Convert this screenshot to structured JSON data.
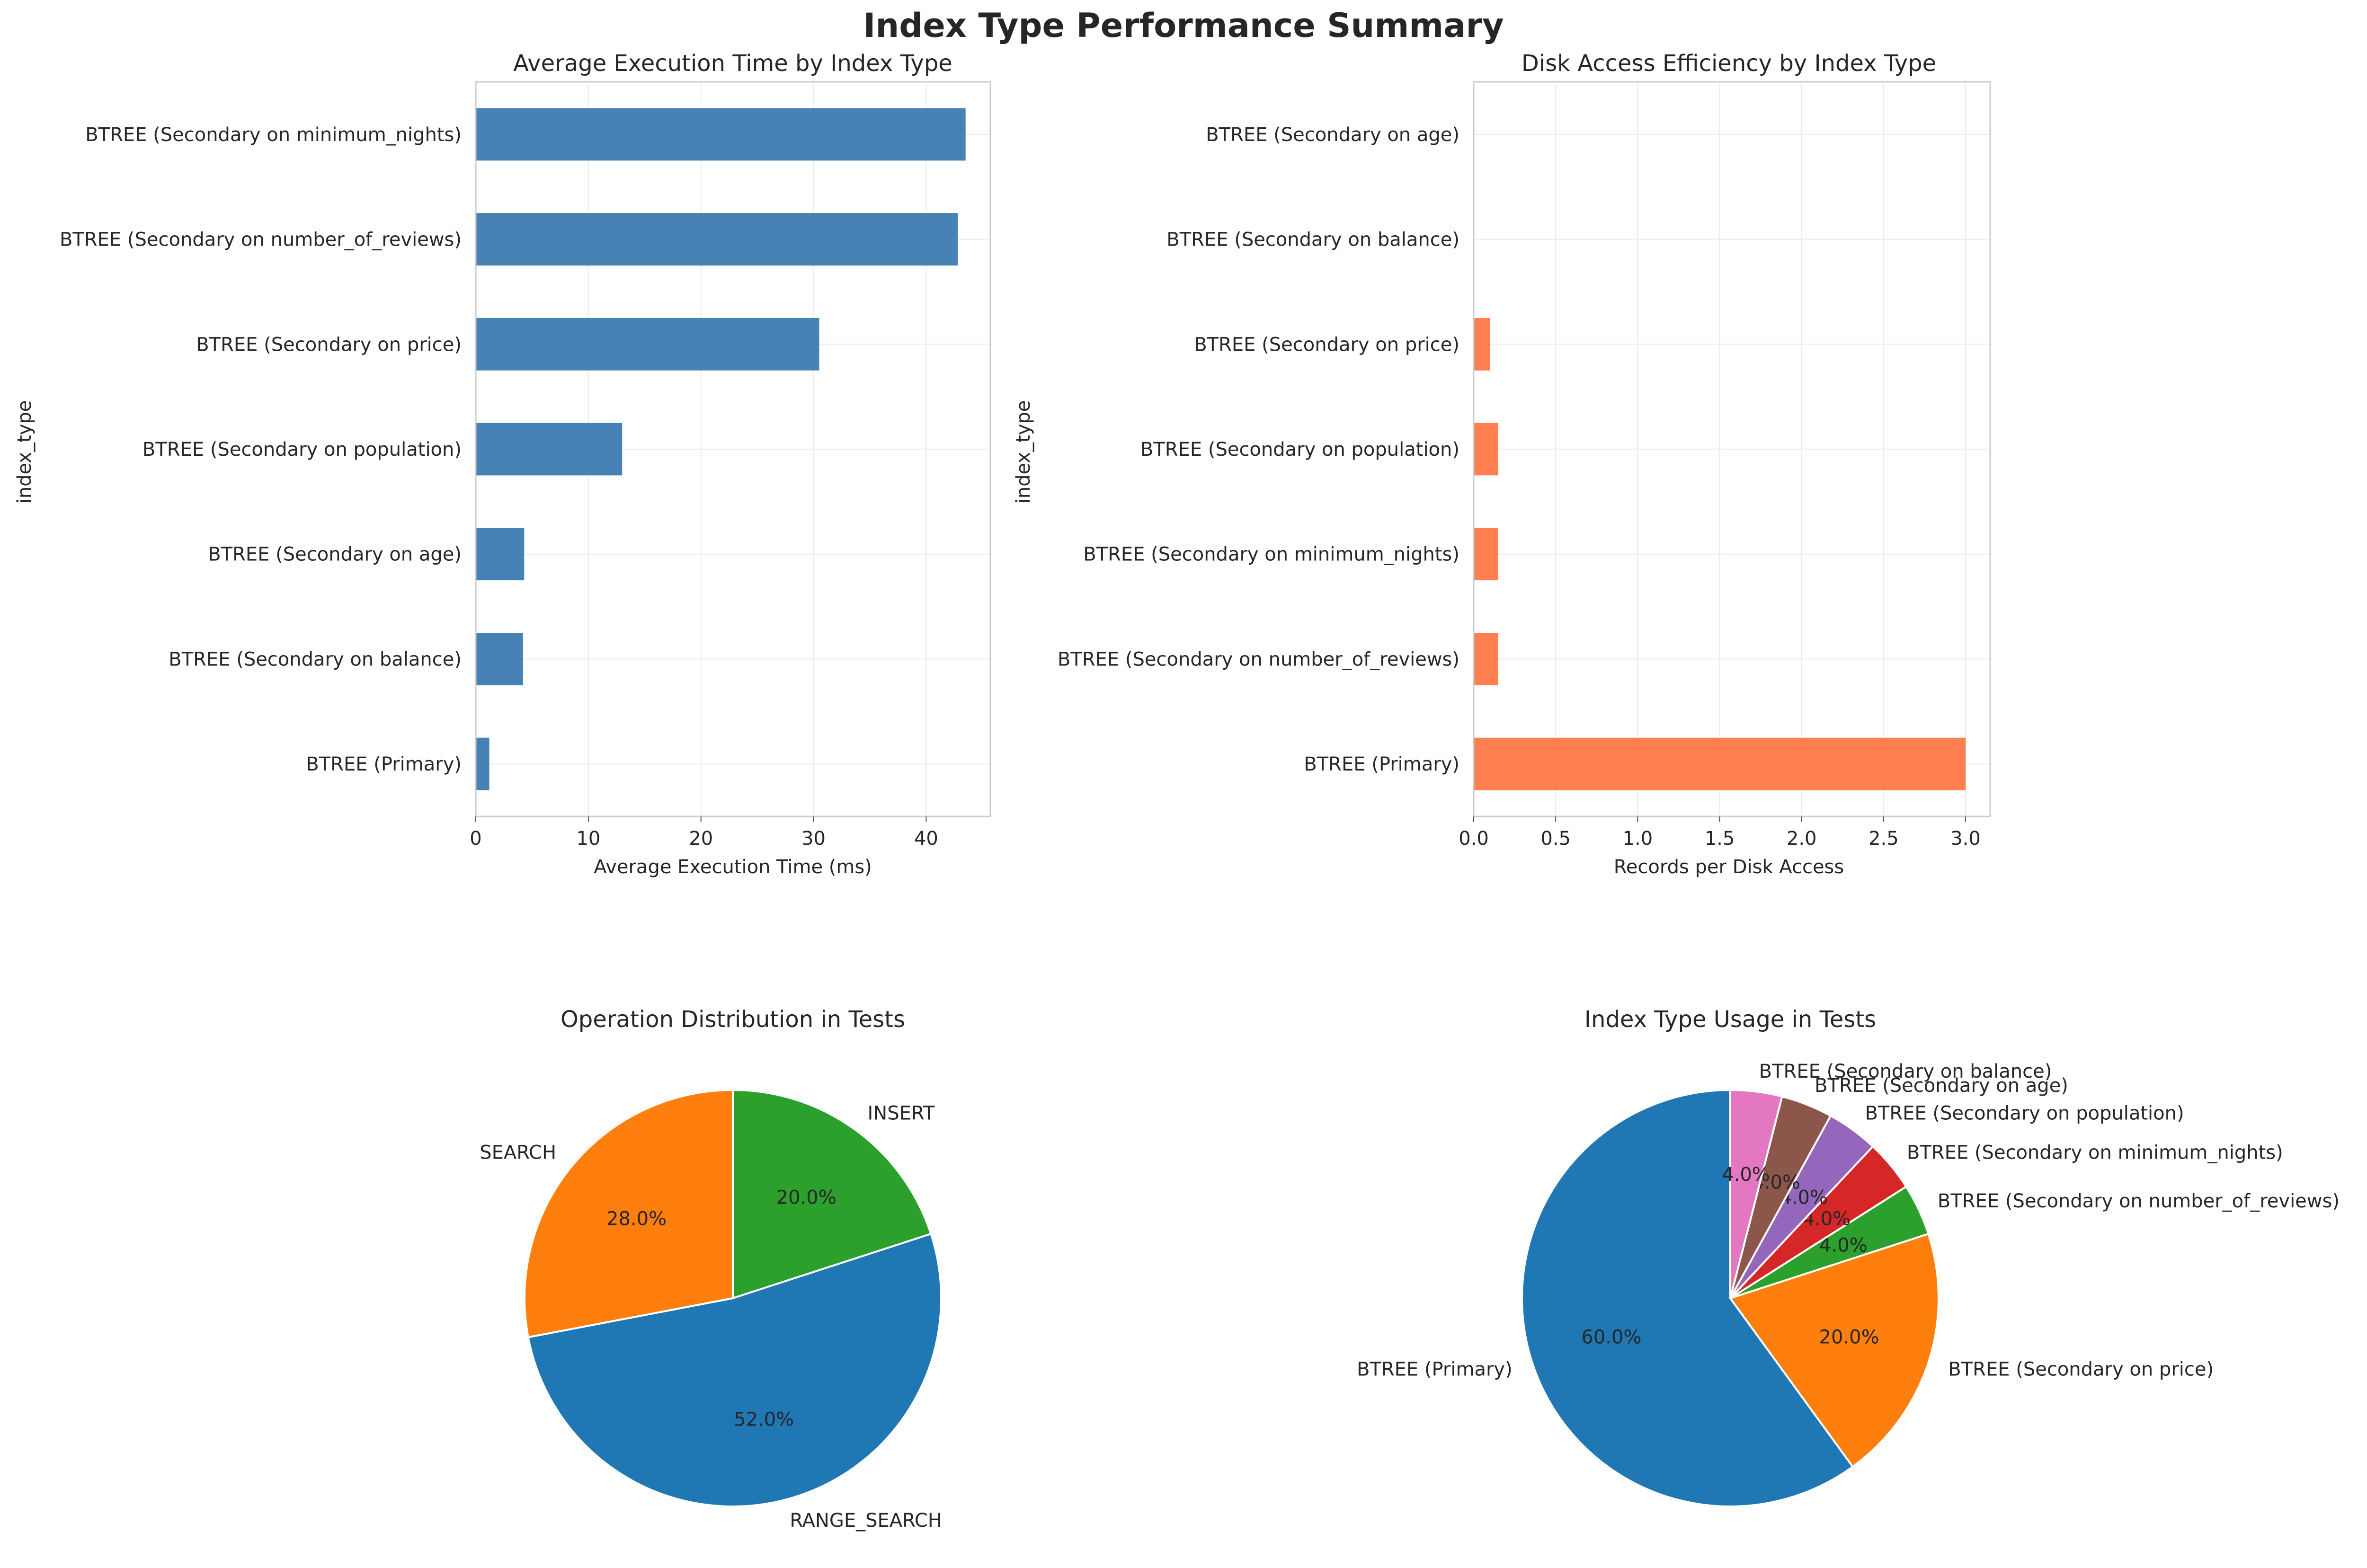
{
  "figure": {
    "suptitle": "Index Type Performance Summary"
  },
  "chart_data": [
    {
      "type": "bar",
      "orientation": "horizontal",
      "title": "Average Execution Time by Index Type",
      "xlabel": "Average Execution Time (ms)",
      "ylabel": "index_type",
      "categories": [
        "BTREE (Primary)",
        "BTREE (Secondary on balance)",
        "BTREE (Secondary on age)",
        "BTREE (Secondary on population)",
        "BTREE (Secondary on price)",
        "BTREE (Secondary on number_of_reviews)",
        "BTREE (Secondary on minimum_nights)"
      ],
      "values": [
        1.2,
        4.2,
        4.3,
        13.0,
        30.5,
        42.8,
        43.5
      ],
      "xlim": [
        0,
        45.7
      ],
      "xticks": [
        0,
        10,
        20,
        30,
        40
      ],
      "grid": true,
      "color": "#4682b4"
    },
    {
      "type": "bar",
      "orientation": "horizontal",
      "title": "Disk Access Efficiency by Index Type",
      "xlabel": "Records per Disk Access",
      "ylabel": "index_type",
      "categories": [
        "BTREE (Primary)",
        "BTREE (Secondary on number_of_reviews)",
        "BTREE (Secondary on minimum_nights)",
        "BTREE (Secondary on population)",
        "BTREE (Secondary on price)",
        "BTREE (Secondary on balance)",
        "BTREE (Secondary on age)"
      ],
      "values": [
        3.0,
        0.15,
        0.15,
        0.15,
        0.1,
        0.0,
        0.0
      ],
      "xlim": [
        0,
        3.15
      ],
      "xticks": [
        0.0,
        0.5,
        1.0,
        1.5,
        2.0,
        2.5,
        3.0
      ],
      "xtick_labels": [
        "0.0",
        "0.5",
        "1.0",
        "1.5",
        "2.0",
        "2.5",
        "3.0"
      ],
      "grid": true,
      "color": "#ff7f50"
    },
    {
      "type": "pie",
      "title": "Operation Distribution in Tests",
      "labels": [
        "INSERT",
        "RANGE_SEARCH",
        "SEARCH"
      ],
      "values": [
        20.0,
        52.0,
        28.0
      ],
      "pct_labels": [
        "20.0%",
        "52.0%",
        "28.0%"
      ],
      "colors": [
        "#2ca02c",
        "#1f77b4",
        "#ff7f0e"
      ],
      "order": "clockwise from top"
    },
    {
      "type": "pie",
      "title": "Index Type Usage in Tests",
      "labels": [
        "BTREE (Primary)",
        "BTREE (Secondary on price)",
        "BTREE (Secondary on number_of_reviews)",
        "BTREE (Secondary on minimum_nights)",
        "BTREE (Secondary on population)",
        "BTREE (Secondary on age)",
        "BTREE (Secondary on balance)"
      ],
      "values": [
        60.0,
        20.0,
        4.0,
        4.0,
        4.0,
        4.0,
        4.0
      ],
      "pct_labels": [
        "60.0%",
        "20.0%",
        "4.0%",
        "4.0%",
        "4.0%",
        "4.0%",
        "4.0%"
      ],
      "colors": [
        "#1f77b4",
        "#ff7f0e",
        "#2ca02c",
        "#d62728",
        "#9467bd",
        "#8c564b",
        "#e377c2"
      ],
      "order": "counter-clockwise from top"
    }
  ]
}
